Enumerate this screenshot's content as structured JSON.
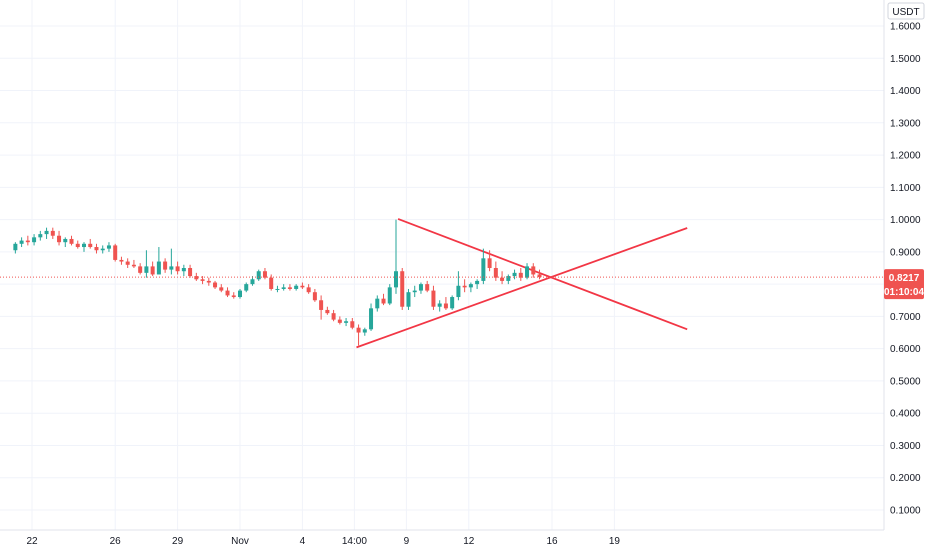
{
  "header": {
    "currency_label": "USDT"
  },
  "chart_data": {
    "type": "candlestick",
    "y_axis": {
      "ticks": [
        "1.6000",
        "1.5000",
        "1.4000",
        "1.3000",
        "1.2000",
        "1.1000",
        "1.0000",
        "0.9000",
        "0.8000",
        "0.7000",
        "0.6000",
        "0.5000",
        "0.4000",
        "0.3000",
        "0.2000",
        "0.1000"
      ],
      "range": [
        0.03,
        1.68
      ]
    },
    "x_axis": {
      "ticks": [
        {
          "label": "22",
          "pos": 0.0
        },
        {
          "label": "26",
          "pos": 4.0
        },
        {
          "label": "29",
          "pos": 7.0
        },
        {
          "label": "Nov",
          "pos": 10.0
        },
        {
          "label": "4",
          "pos": 13.0
        },
        {
          "label": "14:00",
          "pos": 15.5
        },
        {
          "label": "9",
          "pos": 18.0
        },
        {
          "label": "12",
          "pos": 21.0
        },
        {
          "label": "16",
          "pos": 25.0
        },
        {
          "label": "19",
          "pos": 28.0
        }
      ],
      "range": [
        -0.8,
        31.0
      ]
    },
    "current_price": "0.8217",
    "countdown": "01:10:04",
    "colors": {
      "up": "#26a69a",
      "down": "#ef5350",
      "price_line": "#ef5350",
      "trendline": "#f23645"
    },
    "candles": [
      [
        -0.8,
        0.905,
        0.93,
        0.895,
        0.925
      ],
      [
        -0.5,
        0.925,
        0.945,
        0.915,
        0.935
      ],
      [
        -0.2,
        0.935,
        0.95,
        0.92,
        0.93
      ],
      [
        0.1,
        0.93,
        0.955,
        0.92,
        0.945
      ],
      [
        0.4,
        0.945,
        0.965,
        0.935,
        0.955
      ],
      [
        0.7,
        0.955,
        0.975,
        0.94,
        0.965
      ],
      [
        1.0,
        0.965,
        0.975,
        0.94,
        0.95
      ],
      [
        1.3,
        0.95,
        0.965,
        0.92,
        0.93
      ],
      [
        1.6,
        0.93,
        0.945,
        0.915,
        0.94
      ],
      [
        1.9,
        0.94,
        0.95,
        0.92,
        0.925
      ],
      [
        2.2,
        0.925,
        0.935,
        0.91,
        0.915
      ],
      [
        2.5,
        0.915,
        0.93,
        0.9,
        0.925
      ],
      [
        2.8,
        0.925,
        0.94,
        0.91,
        0.915
      ],
      [
        3.1,
        0.915,
        0.925,
        0.895,
        0.905
      ],
      [
        3.4,
        0.905,
        0.92,
        0.895,
        0.91
      ],
      [
        3.7,
        0.91,
        0.93,
        0.9,
        0.92
      ],
      [
        4.0,
        0.92,
        0.925,
        0.87,
        0.875
      ],
      [
        4.3,
        0.875,
        0.885,
        0.86,
        0.87
      ],
      [
        4.6,
        0.87,
        0.88,
        0.85,
        0.86
      ],
      [
        4.9,
        0.86,
        0.875,
        0.85,
        0.855
      ],
      [
        5.2,
        0.855,
        0.865,
        0.83,
        0.835
      ],
      [
        5.5,
        0.835,
        0.905,
        0.82,
        0.855
      ],
      [
        5.8,
        0.855,
        0.87,
        0.825,
        0.83
      ],
      [
        6.1,
        0.83,
        0.915,
        0.83,
        0.87
      ],
      [
        6.4,
        0.87,
        0.88,
        0.835,
        0.845
      ],
      [
        6.7,
        0.845,
        0.91,
        0.83,
        0.855
      ],
      [
        7.0,
        0.855,
        0.87,
        0.83,
        0.84
      ],
      [
        7.3,
        0.84,
        0.86,
        0.825,
        0.85
      ],
      [
        7.6,
        0.85,
        0.86,
        0.82,
        0.825
      ],
      [
        7.9,
        0.825,
        0.835,
        0.81,
        0.815
      ],
      [
        8.2,
        0.815,
        0.825,
        0.8,
        0.81
      ],
      [
        8.5,
        0.81,
        0.82,
        0.795,
        0.805
      ],
      [
        8.8,
        0.805,
        0.81,
        0.785,
        0.79
      ],
      [
        9.1,
        0.79,
        0.8,
        0.775,
        0.78
      ],
      [
        9.4,
        0.78,
        0.79,
        0.76,
        0.765
      ],
      [
        9.7,
        0.765,
        0.775,
        0.755,
        0.76
      ],
      [
        10.0,
        0.76,
        0.785,
        0.755,
        0.78
      ],
      [
        10.3,
        0.78,
        0.805,
        0.775,
        0.8
      ],
      [
        10.6,
        0.8,
        0.825,
        0.795,
        0.815
      ],
      [
        10.9,
        0.815,
        0.845,
        0.81,
        0.84
      ],
      [
        11.2,
        0.84,
        0.85,
        0.815,
        0.82
      ],
      [
        11.5,
        0.82,
        0.83,
        0.78,
        0.785
      ],
      [
        11.8,
        0.785,
        0.795,
        0.775,
        0.785
      ],
      [
        12.1,
        0.785,
        0.8,
        0.78,
        0.79
      ],
      [
        12.4,
        0.79,
        0.8,
        0.78,
        0.785
      ],
      [
        12.7,
        0.785,
        0.8,
        0.78,
        0.795
      ],
      [
        13.0,
        0.795,
        0.805,
        0.785,
        0.79
      ],
      [
        13.3,
        0.79,
        0.8,
        0.77,
        0.775
      ],
      [
        13.6,
        0.775,
        0.785,
        0.745,
        0.75
      ],
      [
        13.9,
        0.75,
        0.765,
        0.69,
        0.72
      ],
      [
        14.2,
        0.72,
        0.73,
        0.705,
        0.71
      ],
      [
        14.5,
        0.71,
        0.72,
        0.685,
        0.69
      ],
      [
        14.8,
        0.69,
        0.7,
        0.675,
        0.68
      ],
      [
        15.1,
        0.68,
        0.695,
        0.67,
        0.685
      ],
      [
        15.4,
        0.685,
        0.695,
        0.66,
        0.665
      ],
      [
        15.7,
        0.665,
        0.675,
        0.61,
        0.65
      ],
      [
        16.0,
        0.65,
        0.665,
        0.64,
        0.66
      ],
      [
        16.3,
        0.66,
        0.74,
        0.655,
        0.725
      ],
      [
        16.6,
        0.725,
        0.765,
        0.715,
        0.755
      ],
      [
        16.9,
        0.755,
        0.77,
        0.735,
        0.74
      ],
      [
        17.2,
        0.74,
        0.8,
        0.735,
        0.79
      ],
      [
        17.5,
        0.79,
        1.0,
        0.77,
        0.84
      ],
      [
        17.8,
        0.84,
        0.85,
        0.72,
        0.73
      ],
      [
        18.1,
        0.73,
        0.785,
        0.72,
        0.775
      ],
      [
        18.4,
        0.775,
        0.795,
        0.76,
        0.78
      ],
      [
        18.7,
        0.78,
        0.805,
        0.77,
        0.8
      ],
      [
        19.0,
        0.8,
        0.81,
        0.775,
        0.78
      ],
      [
        19.3,
        0.78,
        0.795,
        0.72,
        0.73
      ],
      [
        19.6,
        0.73,
        0.75,
        0.715,
        0.74
      ],
      [
        19.9,
        0.74,
        0.76,
        0.72,
        0.725
      ],
      [
        20.2,
        0.725,
        0.765,
        0.72,
        0.76
      ],
      [
        20.5,
        0.76,
        0.84,
        0.75,
        0.795
      ],
      [
        20.8,
        0.795,
        0.815,
        0.775,
        0.79
      ],
      [
        21.1,
        0.79,
        0.805,
        0.775,
        0.8
      ],
      [
        21.4,
        0.8,
        0.815,
        0.785,
        0.81
      ],
      [
        21.7,
        0.81,
        0.91,
        0.8,
        0.88
      ],
      [
        22.0,
        0.88,
        0.905,
        0.84,
        0.85
      ],
      [
        22.3,
        0.85,
        0.87,
        0.81,
        0.82
      ],
      [
        22.6,
        0.82,
        0.84,
        0.8,
        0.81
      ],
      [
        22.9,
        0.81,
        0.83,
        0.8,
        0.825
      ],
      [
        23.2,
        0.825,
        0.845,
        0.815,
        0.835
      ],
      [
        23.5,
        0.835,
        0.85,
        0.81,
        0.82
      ],
      [
        23.8,
        0.82,
        0.865,
        0.815,
        0.855
      ],
      [
        24.1,
        0.855,
        0.865,
        0.82,
        0.83
      ],
      [
        24.4,
        0.83,
        0.845,
        0.815,
        0.8217
      ]
    ],
    "trendlines": [
      {
        "name": "upper",
        "x1": 17.6,
        "y1": 1.002,
        "x2": 31.5,
        "y2": 0.66
      },
      {
        "name": "lower",
        "x1": 15.6,
        "y1": 0.604,
        "x2": 31.5,
        "y2": 0.974
      }
    ]
  }
}
